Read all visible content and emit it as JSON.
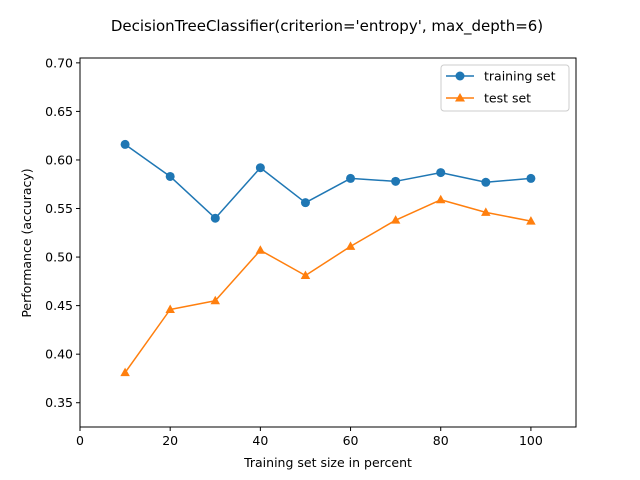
{
  "chart_data": {
    "type": "line",
    "title": "DecisionTreeClassifier(criterion='entropy', max_depth=6)",
    "xlabel": "Training set size in percent",
    "ylabel": "Performance (accuracy)",
    "xlim": [
      0,
      110
    ],
    "ylim": [
      0.325,
      0.705
    ],
    "xticks": [
      0,
      20,
      40,
      60,
      80,
      100
    ],
    "xtick_labels": [
      "0",
      "20",
      "40",
      "60",
      "80",
      "100"
    ],
    "yticks": [
      0.35,
      0.4,
      0.45,
      0.5,
      0.55,
      0.6,
      0.65,
      0.7
    ],
    "ytick_labels": [
      "0.35",
      "0.40",
      "0.45",
      "0.50",
      "0.55",
      "0.60",
      "0.65",
      "0.70"
    ],
    "grid": false,
    "legend_position": "top-right",
    "x": [
      10,
      20,
      30,
      40,
      50,
      60,
      70,
      80,
      90,
      100
    ],
    "series": [
      {
        "name": "training set",
        "marker": "circle",
        "color": "#1f77b4",
        "values": [
          0.616,
          0.583,
          0.54,
          0.592,
          0.556,
          0.581,
          0.578,
          0.587,
          0.577,
          0.581
        ]
      },
      {
        "name": "test set",
        "marker": "triangle",
        "color": "#ff7f0e",
        "values": [
          0.381,
          0.446,
          0.455,
          0.507,
          0.481,
          0.511,
          0.538,
          0.559,
          0.546,
          0.537
        ]
      }
    ]
  }
}
